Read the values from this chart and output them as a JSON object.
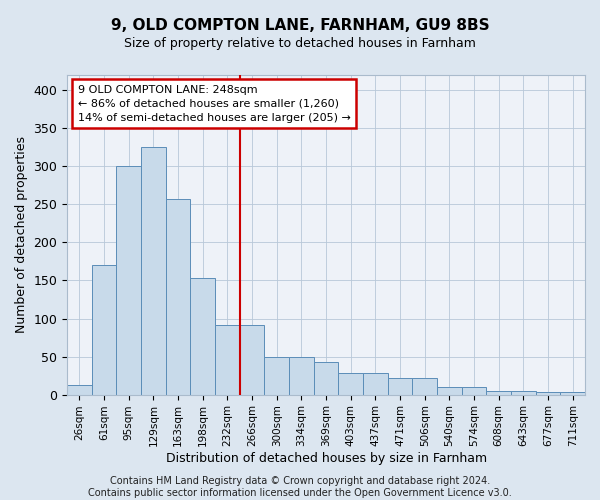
{
  "title": "9, OLD COMPTON LANE, FARNHAM, GU9 8BS",
  "subtitle": "Size of property relative to detached houses in Farnham",
  "xlabel": "Distribution of detached houses by size in Farnham",
  "ylabel": "Number of detached properties",
  "bar_labels": [
    "26sqm",
    "61sqm",
    "95sqm",
    "129sqm",
    "163sqm",
    "198sqm",
    "232sqm",
    "266sqm",
    "300sqm",
    "334sqm",
    "369sqm",
    "403sqm",
    "437sqm",
    "471sqm",
    "506sqm",
    "540sqm",
    "574sqm",
    "608sqm",
    "643sqm",
    "677sqm",
    "711sqm"
  ],
  "bar_heights": [
    13,
    170,
    300,
    325,
    257,
    153,
    92,
    92,
    50,
    50,
    43,
    28,
    28,
    22,
    22,
    10,
    10,
    5,
    5,
    3,
    3
  ],
  "bar_color": "#c8daea",
  "bar_edge_color": "#5b8db8",
  "vline_x": 6.5,
  "vline_color": "#cc0000",
  "annotation_text": "9 OLD COMPTON LANE: 248sqm\n← 86% of detached houses are smaller (1,260)\n14% of semi-detached houses are larger (205) →",
  "annotation_box_color": "#ffffff",
  "annotation_box_edge": "#cc0000",
  "ylim": [
    0,
    420
  ],
  "yticks": [
    0,
    50,
    100,
    150,
    200,
    250,
    300,
    350,
    400
  ],
  "footnote": "Contains HM Land Registry data © Crown copyright and database right 2024.\nContains public sector information licensed under the Open Government Licence v3.0.",
  "bg_color": "#dce6f0",
  "plot_bg_color": "#eef2f8",
  "title_fontsize": 11,
  "subtitle_fontsize": 9,
  "footnote_fontsize": 7
}
